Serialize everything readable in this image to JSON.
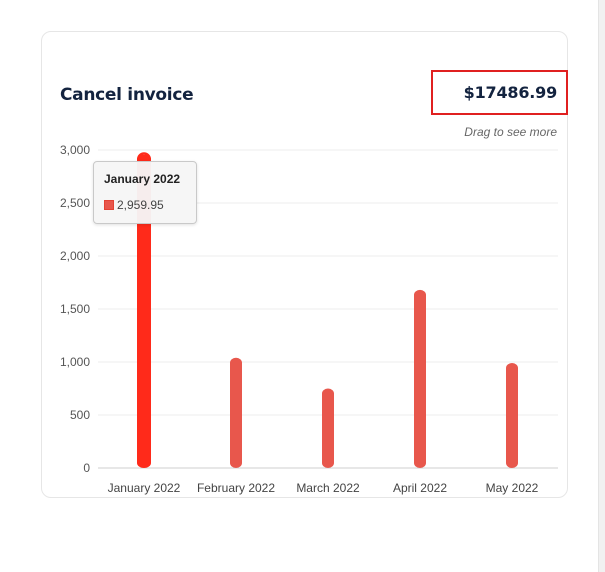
{
  "card": {
    "title": "Cancel invoice",
    "total": "$17486.99",
    "hint": "Drag to see more"
  },
  "tooltip": {
    "title": "January 2022",
    "value": "2,959.95"
  },
  "colors": {
    "bar": "#e8574c",
    "bar_active": "#ff2a1a",
    "highlight_border": "#e02020",
    "title_text": "#13233f"
  },
  "chart_data": {
    "type": "bar",
    "categories": [
      "January 2022",
      "February 2022",
      "March 2022",
      "April 2022",
      "May 2022"
    ],
    "series": [
      {
        "values": [
          2959.95,
          1040,
          750,
          1680,
          990
        ]
      }
    ],
    "yticks": [
      "0",
      "500",
      "1,000",
      "1,500",
      "2,000",
      "2,500",
      "3,000"
    ],
    "ylim": [
      0,
      3000
    ],
    "grid": true,
    "active_index": 0
  }
}
